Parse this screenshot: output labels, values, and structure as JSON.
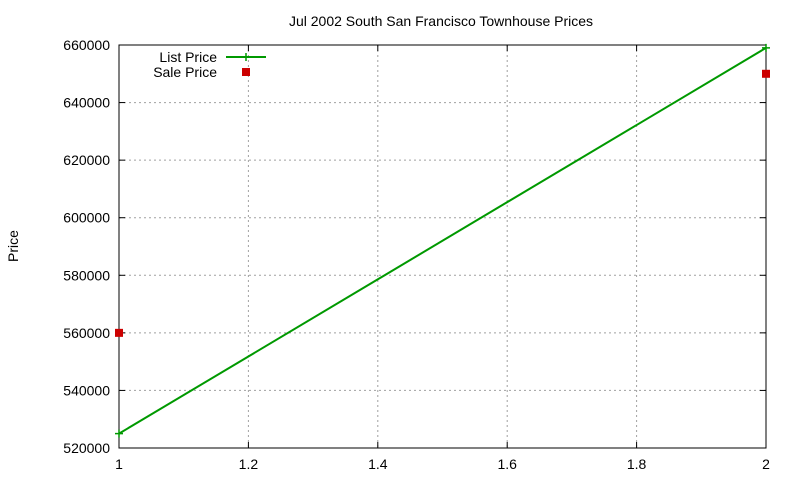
{
  "chart_data": {
    "type": "line",
    "title": "Jul 2002 South San Francisco Townhouse Prices",
    "xlabel": "",
    "ylabel": "Price",
    "xlim": [
      1,
      2
    ],
    "ylim": [
      520000,
      660000
    ],
    "x_ticks": [
      1,
      1.2,
      1.4,
      1.6,
      1.8,
      2
    ],
    "x_tick_labels": [
      "1",
      "1.2",
      "1.4",
      "1.6",
      "1.8",
      "2"
    ],
    "y_ticks": [
      520000,
      540000,
      560000,
      580000,
      600000,
      620000,
      640000,
      660000
    ],
    "y_tick_labels": [
      "520000",
      "540000",
      "560000",
      "580000",
      "600000",
      "620000",
      "640000",
      "660000"
    ],
    "grid": true,
    "legend_position": "top-left",
    "series": [
      {
        "name": "List Price",
        "style": "line-with-plus-markers",
        "color": "#009900",
        "points": [
          {
            "x": 1,
            "y": 525000
          },
          {
            "x": 2,
            "y": 659000
          }
        ]
      },
      {
        "name": "Sale Price",
        "style": "square-markers",
        "color": "#cc0000",
        "points": [
          {
            "x": 1,
            "y": 560000
          },
          {
            "x": 2,
            "y": 650000
          }
        ]
      }
    ]
  }
}
